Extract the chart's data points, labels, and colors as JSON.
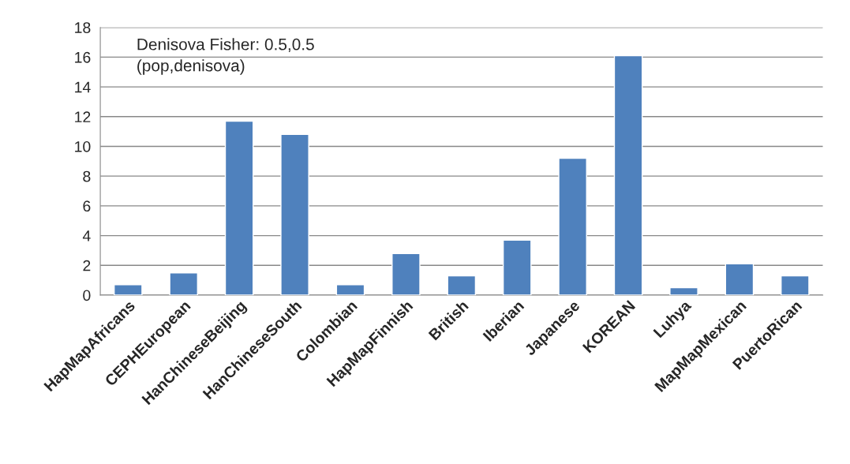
{
  "chart_data": {
    "type": "bar",
    "categories": [
      "HapMapAfricans",
      "CEPHEuropean",
      "HanChineseBeijing",
      "HanChineseSouth",
      "Colombian",
      "HapMapFinnish",
      "British",
      "Iberian",
      "Japanese",
      "KOREAN",
      "Luhya",
      "MapMapMexican",
      "PuertoRican"
    ],
    "values": [
      0.7,
      1.5,
      11.7,
      10.8,
      0.7,
      2.8,
      1.3,
      3.7,
      9.2,
      16.1,
      0.5,
      2.1,
      1.3
    ],
    "color": "#4f81bd",
    "ylim": [
      0,
      18
    ],
    "yticks": [
      0,
      2,
      4,
      6,
      8,
      10,
      12,
      14,
      16,
      18
    ],
    "grid": "y",
    "annotations": [
      "Denisova Fisher: 0.5,0.5\n(pop,denisova)"
    ]
  }
}
